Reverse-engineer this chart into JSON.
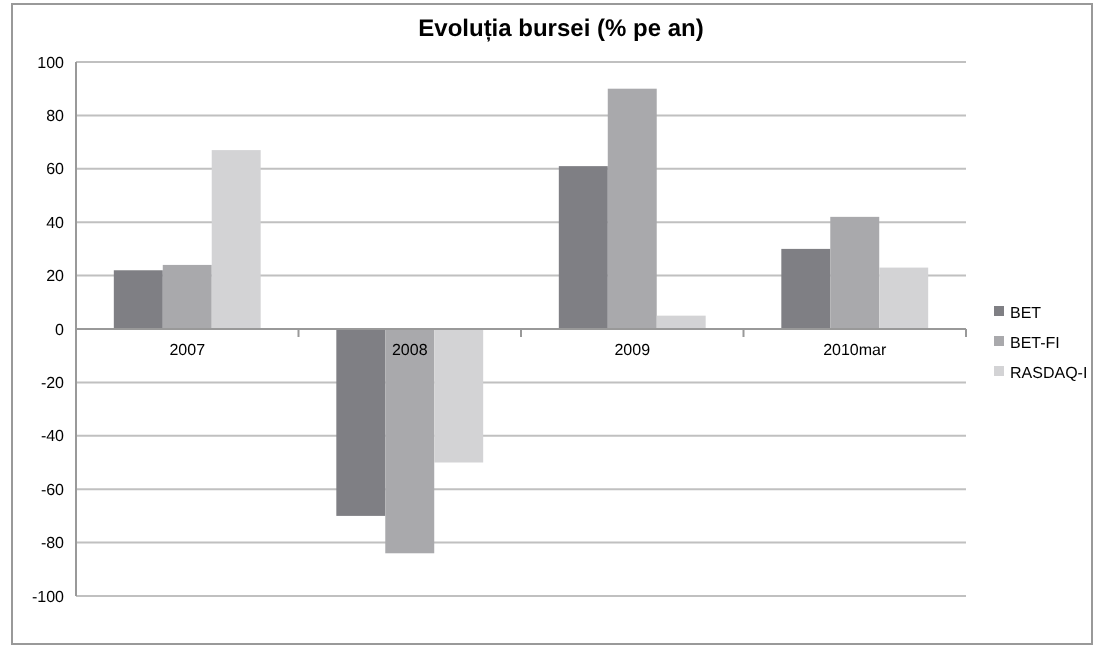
{
  "chart_data": {
    "type": "bar",
    "title": "Evoluția bursei (% pe an)",
    "categories": [
      "2007",
      "2008",
      "2009",
      "2010mar"
    ],
    "series": [
      {
        "name": "BET",
        "color": "#7f7f84",
        "values": [
          22,
          -70,
          61,
          30
        ]
      },
      {
        "name": "BET-FI",
        "color": "#a9a9ac",
        "values": [
          24,
          -84,
          90,
          42
        ]
      },
      {
        "name": "RASDAQ-I",
        "color": "#d3d3d5",
        "values": [
          67,
          -50,
          5,
          23
        ]
      }
    ],
    "ylim": [
      -100,
      100
    ],
    "yticks": [
      -100,
      -80,
      -60,
      -40,
      -20,
      0,
      20,
      40,
      60,
      80,
      100
    ],
    "grid": "y",
    "legend": "right"
  }
}
